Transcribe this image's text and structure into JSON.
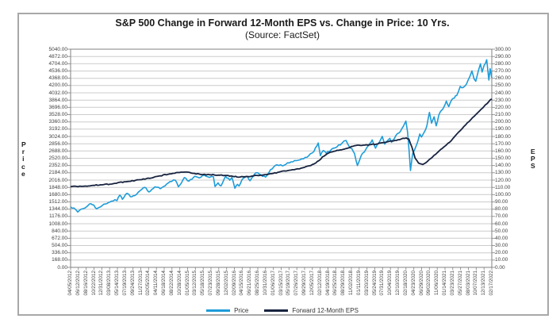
{
  "chart_data": {
    "type": "line",
    "title": "S&P 500 Change in Forward 12-Month EPS vs. Change in Price: 10 Yrs.",
    "subtitle": "(Source: FactSet)",
    "legend_position": "bottom",
    "grid": {
      "color": "#cccccc",
      "horizontal": true,
      "vertical": false
    },
    "plot_border_color": "#808080",
    "left_axis": {
      "label": "Price",
      "min": 0,
      "max": 5040,
      "step": 168,
      "decimals": 2
    },
    "right_axis": {
      "label": "EPS",
      "min": 0,
      "max": 300,
      "step": 10,
      "decimals": 2
    },
    "x_axis": {
      "tick_labels": [
        "04/05/2012",
        "06/12/2012",
        "08/16/2012",
        "10/22/2012",
        "12/31/2012",
        "03/08/2013",
        "05/14/2013",
        "07/19/2013",
        "09/24/2013",
        "11/27/2013",
        "02/05/2014",
        "04/11/2014",
        "06/18/2014",
        "08/22/2014",
        "10/28/2014",
        "01/05/2015",
        "03/12/2015",
        "05/18/2015",
        "07/23/2015",
        "09/28/2015",
        "12/02/2015",
        "02/09/2016",
        "04/15/2016",
        "06/21/2016",
        "08/25/2016",
        "10/31/2016",
        "01/06/2017",
        "03/15/2017",
        "05/19/2017",
        "07/26/2017",
        "09/29/2017",
        "12/05/2017",
        "02/12/2018",
        "04/19/2018",
        "06/25/2018",
        "08/29/2018",
        "11/02/2018",
        "01/11/2019",
        "03/20/2019",
        "05/24/2019",
        "07/31/2019",
        "10/04/2019",
        "12/10/2019",
        "02/18/2020",
        "04/23/2020",
        "06/29/2020",
        "09/02/2020",
        "11/06/2020",
        "01/14/2021",
        "03/23/2021",
        "05/27/2021",
        "08/03/2021",
        "10/07/2021",
        "12/13/2021",
        "02/17/2022"
      ]
    },
    "series": [
      {
        "name": "Price",
        "axis": "left",
        "color": "#1e9cd9",
        "stroke_width": 1.6,
        "noise": 22,
        "points": [
          [
            0.0,
            1398
          ],
          [
            0.008,
            1370
          ],
          [
            0.017,
            1278
          ],
          [
            0.03,
            1356
          ],
          [
            0.045,
            1466
          ],
          [
            0.055,
            1441
          ],
          [
            0.062,
            1353
          ],
          [
            0.075,
            1426
          ],
          [
            0.09,
            1498
          ],
          [
            0.105,
            1563
          ],
          [
            0.11,
            1541
          ],
          [
            0.117,
            1667
          ],
          [
            0.123,
            1573
          ],
          [
            0.134,
            1710
          ],
          [
            0.142,
            1633
          ],
          [
            0.152,
            1656
          ],
          [
            0.165,
            1771
          ],
          [
            0.176,
            1848
          ],
          [
            0.186,
            1742
          ],
          [
            0.2,
            1859
          ],
          [
            0.213,
            1816
          ],
          [
            0.228,
            1925
          ],
          [
            0.24,
            1985
          ],
          [
            0.249,
            2011
          ],
          [
            0.256,
            1862
          ],
          [
            0.27,
            2075
          ],
          [
            0.281,
            1993
          ],
          [
            0.295,
            2104
          ],
          [
            0.305,
            2068
          ],
          [
            0.317,
            2131
          ],
          [
            0.33,
            2077
          ],
          [
            0.339,
            2096
          ],
          [
            0.343,
            1868
          ],
          [
            0.35,
            1952
          ],
          [
            0.357,
            1882
          ],
          [
            0.368,
            2104
          ],
          [
            0.378,
            2012
          ],
          [
            0.383,
            2078
          ],
          [
            0.39,
            1829
          ],
          [
            0.396,
            1917
          ],
          [
            0.4,
            1880
          ],
          [
            0.41,
            2060
          ],
          [
            0.42,
            2096
          ],
          [
            0.426,
            2001
          ],
          [
            0.44,
            2184
          ],
          [
            0.452,
            2139
          ],
          [
            0.463,
            2085
          ],
          [
            0.475,
            2260
          ],
          [
            0.49,
            2368
          ],
          [
            0.503,
            2344
          ],
          [
            0.515,
            2415
          ],
          [
            0.528,
            2440
          ],
          [
            0.54,
            2475
          ],
          [
            0.553,
            2508
          ],
          [
            0.565,
            2575
          ],
          [
            0.578,
            2680
          ],
          [
            0.588,
            2873
          ],
          [
            0.593,
            2581
          ],
          [
            0.6,
            2700
          ],
          [
            0.607,
            2640
          ],
          [
            0.618,
            2713
          ],
          [
            0.632,
            2780
          ],
          [
            0.645,
            2875
          ],
          [
            0.654,
            2931
          ],
          [
            0.663,
            2768
          ],
          [
            0.668,
            2740
          ],
          [
            0.674,
            2633
          ],
          [
            0.681,
            2351
          ],
          [
            0.69,
            2585
          ],
          [
            0.7,
            2707
          ],
          [
            0.71,
            2860
          ],
          [
            0.716,
            2946
          ],
          [
            0.724,
            2752
          ],
          [
            0.733,
            2890
          ],
          [
            0.74,
            3026
          ],
          [
            0.746,
            2847
          ],
          [
            0.752,
            2924
          ],
          [
            0.758,
            2980
          ],
          [
            0.762,
            2888
          ],
          [
            0.772,
            3040
          ],
          [
            0.783,
            3140
          ],
          [
            0.79,
            3258
          ],
          [
            0.796,
            3380
          ],
          [
            0.8,
            3130
          ],
          [
            0.807,
            2237
          ],
          [
            0.812,
            2626
          ],
          [
            0.818,
            2750
          ],
          [
            0.823,
            2870
          ],
          [
            0.829,
            3080
          ],
          [
            0.833,
            3009
          ],
          [
            0.84,
            3130
          ],
          [
            0.846,
            3271
          ],
          [
            0.852,
            3580
          ],
          [
            0.857,
            3331
          ],
          [
            0.863,
            3478
          ],
          [
            0.868,
            3270
          ],
          [
            0.874,
            3509
          ],
          [
            0.88,
            3622
          ],
          [
            0.886,
            3700
          ],
          [
            0.892,
            3841
          ],
          [
            0.898,
            3714
          ],
          [
            0.905,
            3875
          ],
          [
            0.911,
            3910
          ],
          [
            0.917,
            3974
          ],
          [
            0.925,
            4180
          ],
          [
            0.932,
            4155
          ],
          [
            0.94,
            4233
          ],
          [
            0.948,
            4411
          ],
          [
            0.953,
            4537
          ],
          [
            0.958,
            4353
          ],
          [
            0.962,
            4300
          ],
          [
            0.968,
            4536
          ],
          [
            0.973,
            4701
          ],
          [
            0.977,
            4513
          ],
          [
            0.982,
            4669
          ],
          [
            0.988,
            4797
          ],
          [
            0.993,
            4327
          ],
          [
            0.996,
            4589
          ],
          [
            1.0,
            4380
          ]
        ]
      },
      {
        "name": "Forward 12-Month EPS",
        "axis": "right",
        "color": "#17233f",
        "stroke_width": 1.8,
        "noise": 0.7,
        "points": [
          [
            0.0,
            111
          ],
          [
            0.025,
            111.5
          ],
          [
            0.05,
            112.5
          ],
          [
            0.075,
            113.5
          ],
          [
            0.105,
            115.5
          ],
          [
            0.135,
            118
          ],
          [
            0.165,
            120.5
          ],
          [
            0.18,
            122
          ],
          [
            0.205,
            125
          ],
          [
            0.235,
            128.5
          ],
          [
            0.255,
            130.5
          ],
          [
            0.272,
            131
          ],
          [
            0.29,
            129.3
          ],
          [
            0.31,
            127.6
          ],
          [
            0.33,
            127.4
          ],
          [
            0.35,
            126.8
          ],
          [
            0.37,
            126.3
          ],
          [
            0.385,
            125.2
          ],
          [
            0.395,
            124.3
          ],
          [
            0.41,
            124.6
          ],
          [
            0.43,
            125.4
          ],
          [
            0.45,
            126.6
          ],
          [
            0.465,
            127.6
          ],
          [
            0.478,
            129
          ],
          [
            0.495,
            131
          ],
          [
            0.515,
            133
          ],
          [
            0.535,
            135
          ],
          [
            0.555,
            137.5
          ],
          [
            0.57,
            140
          ],
          [
            0.582,
            143.5
          ],
          [
            0.59,
            147
          ],
          [
            0.598,
            152
          ],
          [
            0.612,
            157
          ],
          [
            0.625,
            159.5
          ],
          [
            0.64,
            161.5
          ],
          [
            0.655,
            163.5
          ],
          [
            0.67,
            166.5
          ],
          [
            0.681,
            168
          ],
          [
            0.695,
            168
          ],
          [
            0.71,
            168.5
          ],
          [
            0.726,
            169.5
          ],
          [
            0.74,
            171.5
          ],
          [
            0.755,
            173
          ],
          [
            0.77,
            174.5
          ],
          [
            0.785,
            176.5
          ],
          [
            0.797,
            178
          ],
          [
            0.803,
            176.5
          ],
          [
            0.81,
            166
          ],
          [
            0.818,
            150
          ],
          [
            0.826,
            143.5
          ],
          [
            0.836,
            141.5
          ],
          [
            0.845,
            144.5
          ],
          [
            0.852,
            148.5
          ],
          [
            0.863,
            154
          ],
          [
            0.875,
            160
          ],
          [
            0.886,
            165.5
          ],
          [
            0.9,
            172
          ],
          [
            0.912,
            180
          ],
          [
            0.925,
            188
          ],
          [
            0.938,
            196
          ],
          [
            0.95,
            203
          ],
          [
            0.962,
            210
          ],
          [
            0.975,
            217.5
          ],
          [
            0.985,
            223.5
          ],
          [
            0.993,
            228
          ],
          [
            1.0,
            231.5
          ]
        ]
      }
    ]
  }
}
